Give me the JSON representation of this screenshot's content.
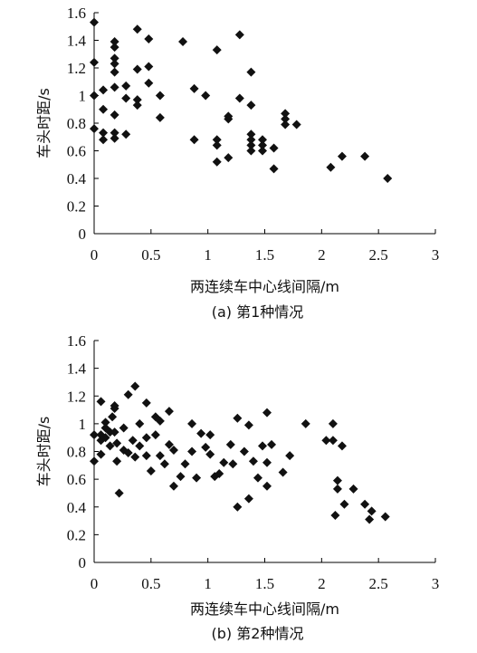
{
  "chart_data": [
    {
      "type": "scatter",
      "caption": "(a) 第1种情况",
      "xlabel": "两连续车中心线间隔/m",
      "ylabel": "车头时距/s",
      "xlim": [
        0,
        3
      ],
      "ylim": [
        0,
        1.6
      ],
      "xticks": [
        "0",
        "0.5",
        "1",
        "1.5",
        "2",
        "2.5",
        "3"
      ],
      "yticks": [
        "0",
        "0.2",
        "0.4",
        "0.6",
        "0.8",
        "1",
        "1.2",
        "1.4",
        "1.6"
      ],
      "marker": "diamond",
      "points": [
        [
          0.0,
          1.53
        ],
        [
          0.0,
          1.24
        ],
        [
          0.0,
          1.0
        ],
        [
          0.0,
          0.76
        ],
        [
          0.08,
          1.04
        ],
        [
          0.08,
          0.9
        ],
        [
          0.08,
          0.73
        ],
        [
          0.08,
          0.68
        ],
        [
          0.18,
          1.39
        ],
        [
          0.18,
          1.35
        ],
        [
          0.18,
          1.27
        ],
        [
          0.18,
          1.23
        ],
        [
          0.18,
          1.17
        ],
        [
          0.18,
          1.06
        ],
        [
          0.18,
          0.86
        ],
        [
          0.18,
          0.73
        ],
        [
          0.18,
          0.69
        ],
        [
          0.28,
          1.07
        ],
        [
          0.28,
          0.98
        ],
        [
          0.28,
          0.72
        ],
        [
          0.38,
          1.48
        ],
        [
          0.38,
          1.19
        ],
        [
          0.38,
          0.97
        ],
        [
          0.38,
          0.93
        ],
        [
          0.48,
          1.41
        ],
        [
          0.48,
          1.21
        ],
        [
          0.48,
          1.09
        ],
        [
          0.58,
          1.0
        ],
        [
          0.58,
          0.84
        ],
        [
          0.78,
          1.39
        ],
        [
          0.88,
          1.05
        ],
        [
          0.88,
          0.68
        ],
        [
          0.98,
          1.0
        ],
        [
          1.08,
          1.33
        ],
        [
          1.08,
          0.68
        ],
        [
          1.08,
          0.64
        ],
        [
          1.08,
          0.52
        ],
        [
          1.18,
          0.85
        ],
        [
          1.18,
          0.83
        ],
        [
          1.18,
          0.55
        ],
        [
          1.28,
          1.44
        ],
        [
          1.28,
          0.98
        ],
        [
          1.38,
          1.17
        ],
        [
          1.38,
          0.93
        ],
        [
          1.38,
          0.72
        ],
        [
          1.38,
          0.68
        ],
        [
          1.38,
          0.64
        ],
        [
          1.38,
          0.6
        ],
        [
          1.48,
          0.68
        ],
        [
          1.48,
          0.64
        ],
        [
          1.48,
          0.6
        ],
        [
          1.58,
          0.62
        ],
        [
          1.58,
          0.47
        ],
        [
          1.68,
          0.87
        ],
        [
          1.68,
          0.83
        ],
        [
          1.68,
          0.79
        ],
        [
          1.78,
          0.79
        ],
        [
          2.08,
          0.48
        ],
        [
          2.18,
          0.56
        ],
        [
          2.38,
          0.56
        ],
        [
          2.58,
          0.4
        ]
      ]
    },
    {
      "type": "scatter",
      "caption": "(b) 第2种情况",
      "xlabel": "两连续车中心线间隔/m",
      "ylabel": "车头时距/s",
      "xlim": [
        0,
        3
      ],
      "ylim": [
        0,
        1.6
      ],
      "xticks": [
        "0",
        "0.5",
        "1",
        "1.5",
        "2",
        "2.5",
        "3"
      ],
      "yticks": [
        "0",
        "0.2",
        "0.4",
        "0.6",
        "0.8",
        "1",
        "1.2",
        "1.4",
        "1.6"
      ],
      "marker": "diamond",
      "points": [
        [
          0.0,
          0.92
        ],
        [
          0.0,
          0.73
        ],
        [
          0.06,
          1.16
        ],
        [
          0.06,
          0.92
        ],
        [
          0.06,
          0.88
        ],
        [
          0.06,
          0.78
        ],
        [
          0.1,
          1.01
        ],
        [
          0.1,
          0.97
        ],
        [
          0.1,
          0.9
        ],
        [
          0.14,
          0.94
        ],
        [
          0.14,
          0.84
        ],
        [
          0.16,
          1.05
        ],
        [
          0.18,
          1.13
        ],
        [
          0.18,
          1.11
        ],
        [
          0.18,
          0.94
        ],
        [
          0.2,
          0.86
        ],
        [
          0.2,
          0.73
        ],
        [
          0.22,
          0.5
        ],
        [
          0.26,
          0.97
        ],
        [
          0.26,
          0.81
        ],
        [
          0.3,
          1.21
        ],
        [
          0.3,
          0.79
        ],
        [
          0.34,
          0.88
        ],
        [
          0.36,
          1.27
        ],
        [
          0.36,
          0.76
        ],
        [
          0.4,
          1.0
        ],
        [
          0.4,
          0.84
        ],
        [
          0.46,
          1.15
        ],
        [
          0.46,
          0.9
        ],
        [
          0.46,
          0.77
        ],
        [
          0.5,
          0.66
        ],
        [
          0.54,
          1.05
        ],
        [
          0.54,
          0.92
        ],
        [
          0.58,
          1.02
        ],
        [
          0.58,
          0.77
        ],
        [
          0.62,
          0.71
        ],
        [
          0.66,
          1.09
        ],
        [
          0.66,
          0.85
        ],
        [
          0.7,
          0.81
        ],
        [
          0.7,
          0.55
        ],
        [
          0.76,
          0.62
        ],
        [
          0.8,
          0.71
        ],
        [
          0.86,
          1.0
        ],
        [
          0.86,
          0.8
        ],
        [
          0.9,
          0.61
        ],
        [
          0.94,
          0.93
        ],
        [
          0.98,
          0.83
        ],
        [
          1.02,
          0.92
        ],
        [
          1.02,
          0.78
        ],
        [
          1.06,
          0.62
        ],
        [
          1.1,
          0.64
        ],
        [
          1.14,
          0.72
        ],
        [
          1.2,
          0.85
        ],
        [
          1.22,
          0.71
        ],
        [
          1.26,
          1.04
        ],
        [
          1.26,
          0.4
        ],
        [
          1.32,
          0.8
        ],
        [
          1.36,
          0.99
        ],
        [
          1.36,
          0.46
        ],
        [
          1.4,
          0.73
        ],
        [
          1.44,
          0.61
        ],
        [
          1.48,
          0.84
        ],
        [
          1.52,
          1.08
        ],
        [
          1.52,
          0.72
        ],
        [
          1.52,
          0.55
        ],
        [
          1.56,
          0.85
        ],
        [
          1.66,
          0.65
        ],
        [
          1.72,
          0.77
        ],
        [
          1.86,
          1.0
        ],
        [
          2.04,
          0.88
        ],
        [
          2.1,
          1.0
        ],
        [
          2.1,
          0.88
        ],
        [
          2.12,
          0.34
        ],
        [
          2.14,
          0.59
        ],
        [
          2.14,
          0.53
        ],
        [
          2.18,
          0.84
        ],
        [
          2.2,
          0.42
        ],
        [
          2.28,
          0.53
        ],
        [
          2.38,
          0.42
        ],
        [
          2.42,
          0.31
        ],
        [
          2.44,
          0.37
        ],
        [
          2.56,
          0.33
        ]
      ]
    }
  ]
}
